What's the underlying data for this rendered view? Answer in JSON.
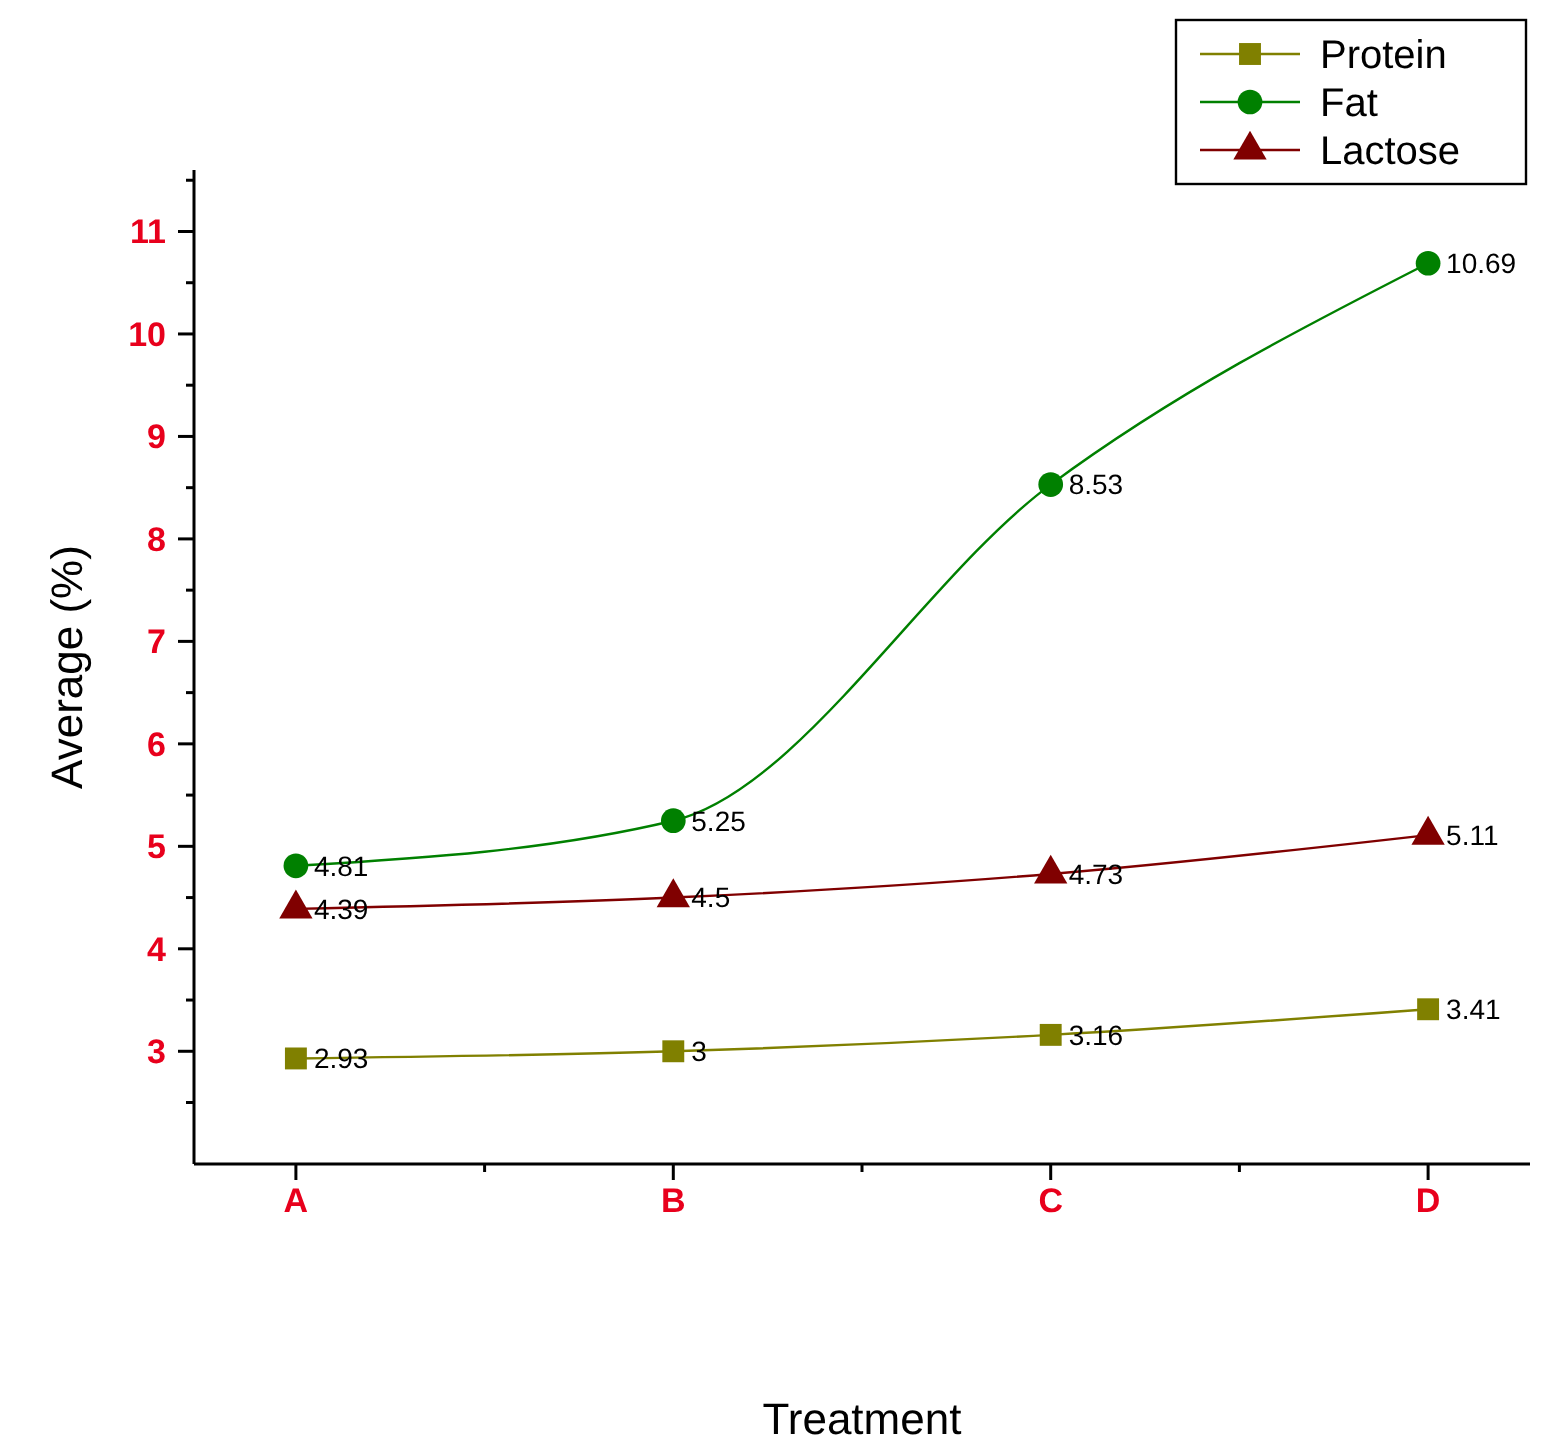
{
  "chart_data": {
    "type": "line",
    "xlabel": "Treatment",
    "ylabel": "Average (%)",
    "categories": [
      "A",
      "B",
      "C",
      "D"
    ],
    "series": [
      {
        "name": "Protein",
        "color": "#808000",
        "marker": "square",
        "values": [
          2.93,
          3,
          3.16,
          3.41
        ]
      },
      {
        "name": "Fat",
        "color": "#008000",
        "marker": "circle",
        "values": [
          4.81,
          5.25,
          8.53,
          10.69
        ]
      },
      {
        "name": "Lactose",
        "color": "#800000",
        "marker": "triangle",
        "values": [
          4.39,
          4.5,
          4.73,
          5.11
        ]
      }
    ],
    "ylim": [
      1.9,
      11.6
    ],
    "yticks": [
      3,
      4,
      5,
      6,
      7,
      8,
      9,
      10,
      11
    ],
    "data_labels": true,
    "legend": "top right",
    "grid": false
  }
}
